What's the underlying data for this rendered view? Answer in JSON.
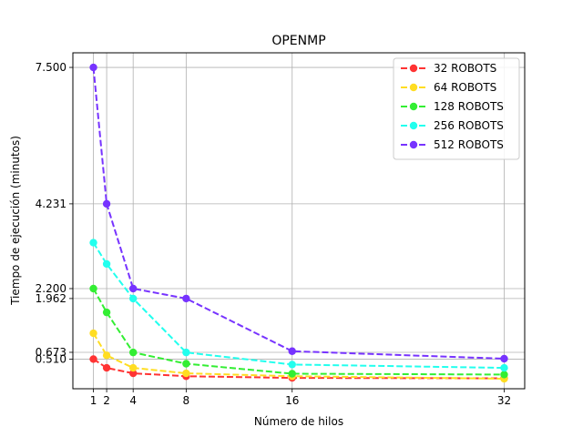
{
  "chart_data": {
    "type": "line",
    "title": "OPENMP",
    "xlabel": "Número de hilos",
    "ylabel": "Tiempo de ejecución (minutos)",
    "x": [
      1,
      2,
      4,
      8,
      16,
      32
    ],
    "x_ticks": [
      1,
      2,
      4,
      8,
      16,
      32
    ],
    "x_tick_labels": [
      "1",
      "2",
      "4",
      "8",
      "16",
      "32"
    ],
    "xlim": [
      -0.55,
      33.55
    ],
    "y_ticks": [
      0.51,
      0.673,
      1.962,
      2.2,
      4.231,
      7.5
    ],
    "y_tick_labels": [
      "0.510",
      "0.673",
      "1.962",
      "2.200",
      "4.231",
      "7.500"
    ],
    "ylim": [
      -0.2,
      7.85
    ],
    "grid": true,
    "legend_position": "top-right",
    "series": [
      {
        "name": "32 ROBOTS",
        "color": "#ff3333",
        "values": [
          0.51,
          0.3,
          0.17,
          0.1,
          0.06,
          0.05
        ]
      },
      {
        "name": "64 ROBOTS",
        "color": "#ffdd22",
        "values": [
          1.13,
          0.6,
          0.3,
          0.17,
          0.1,
          0.04
        ]
      },
      {
        "name": "128 ROBOTS",
        "color": "#33ee33",
        "values": [
          2.2,
          1.63,
          0.67,
          0.4,
          0.16,
          0.14
        ]
      },
      {
        "name": "256 ROBOTS",
        "color": "#22ffee",
        "values": [
          3.3,
          2.79,
          1.96,
          0.67,
          0.38,
          0.3
        ]
      },
      {
        "name": "512 ROBOTS",
        "color": "#7733ff",
        "values": [
          7.5,
          4.231,
          2.2,
          1.962,
          0.7,
          0.52
        ]
      }
    ]
  }
}
